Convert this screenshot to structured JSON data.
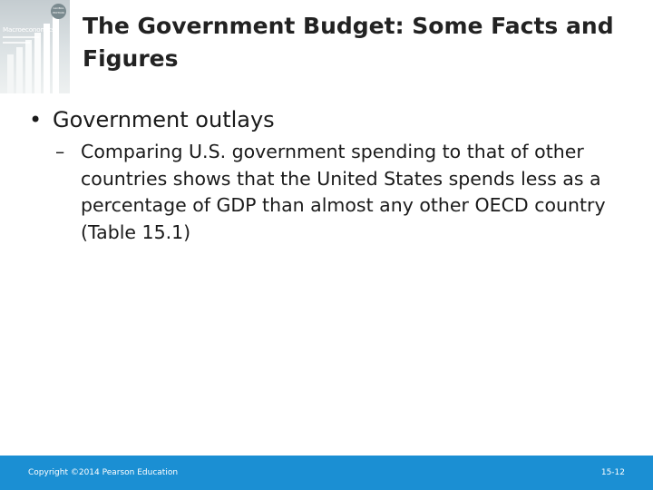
{
  "slide": {
    "title": "The Government Budget: Some Facts and Figures",
    "bullet": "Government outlays",
    "bullet_marker": "•",
    "sub_marker": "–",
    "sub_bullet": "Comparing U.S. government spending to that of other countries shows that the United States spends less as a percentage of GDP than almost any other OECD country (Table 15.1)"
  },
  "cover": {
    "title": "Macroeconomics",
    "badge": "GLOBAL EDITION"
  },
  "footer": {
    "copyright": "Copyright ©2014 Pearson Education",
    "page": "15-12"
  },
  "colors": {
    "footer_bar": "#1b8fd3",
    "title": "#222222"
  }
}
